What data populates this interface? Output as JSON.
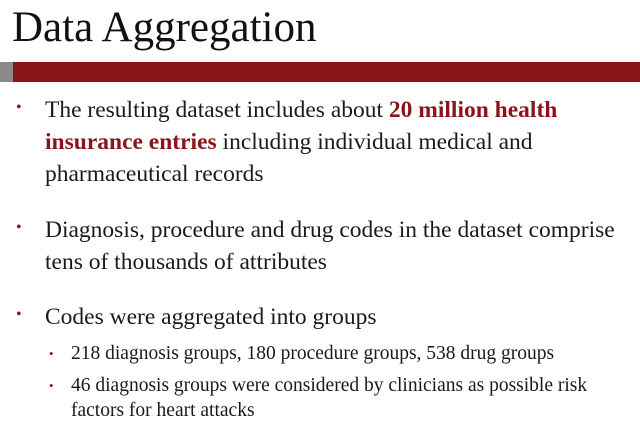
{
  "slide": {
    "title": "Data Aggregation",
    "bullets": [
      {
        "parts": [
          "The resulting dataset includes about ",
          "20 million health insurance entries",
          " including individual medical and pharmaceutical records"
        ]
      },
      {
        "text": "Diagnosis, procedure and drug codes in the dataset comprise tens of thousands of attributes"
      },
      {
        "text": "Codes were aggregated into groups",
        "sub_bullets": [
          "218 diagnosis groups, 180 procedure groups, 538 drug groups",
          "46 diagnosis groups were considered by clinicians as possible risk factors for heart attacks"
        ]
      }
    ],
    "bullet_glyph": "•",
    "accent_color": "#8b1418",
    "bar_grey_color": "#8a8a8a"
  }
}
